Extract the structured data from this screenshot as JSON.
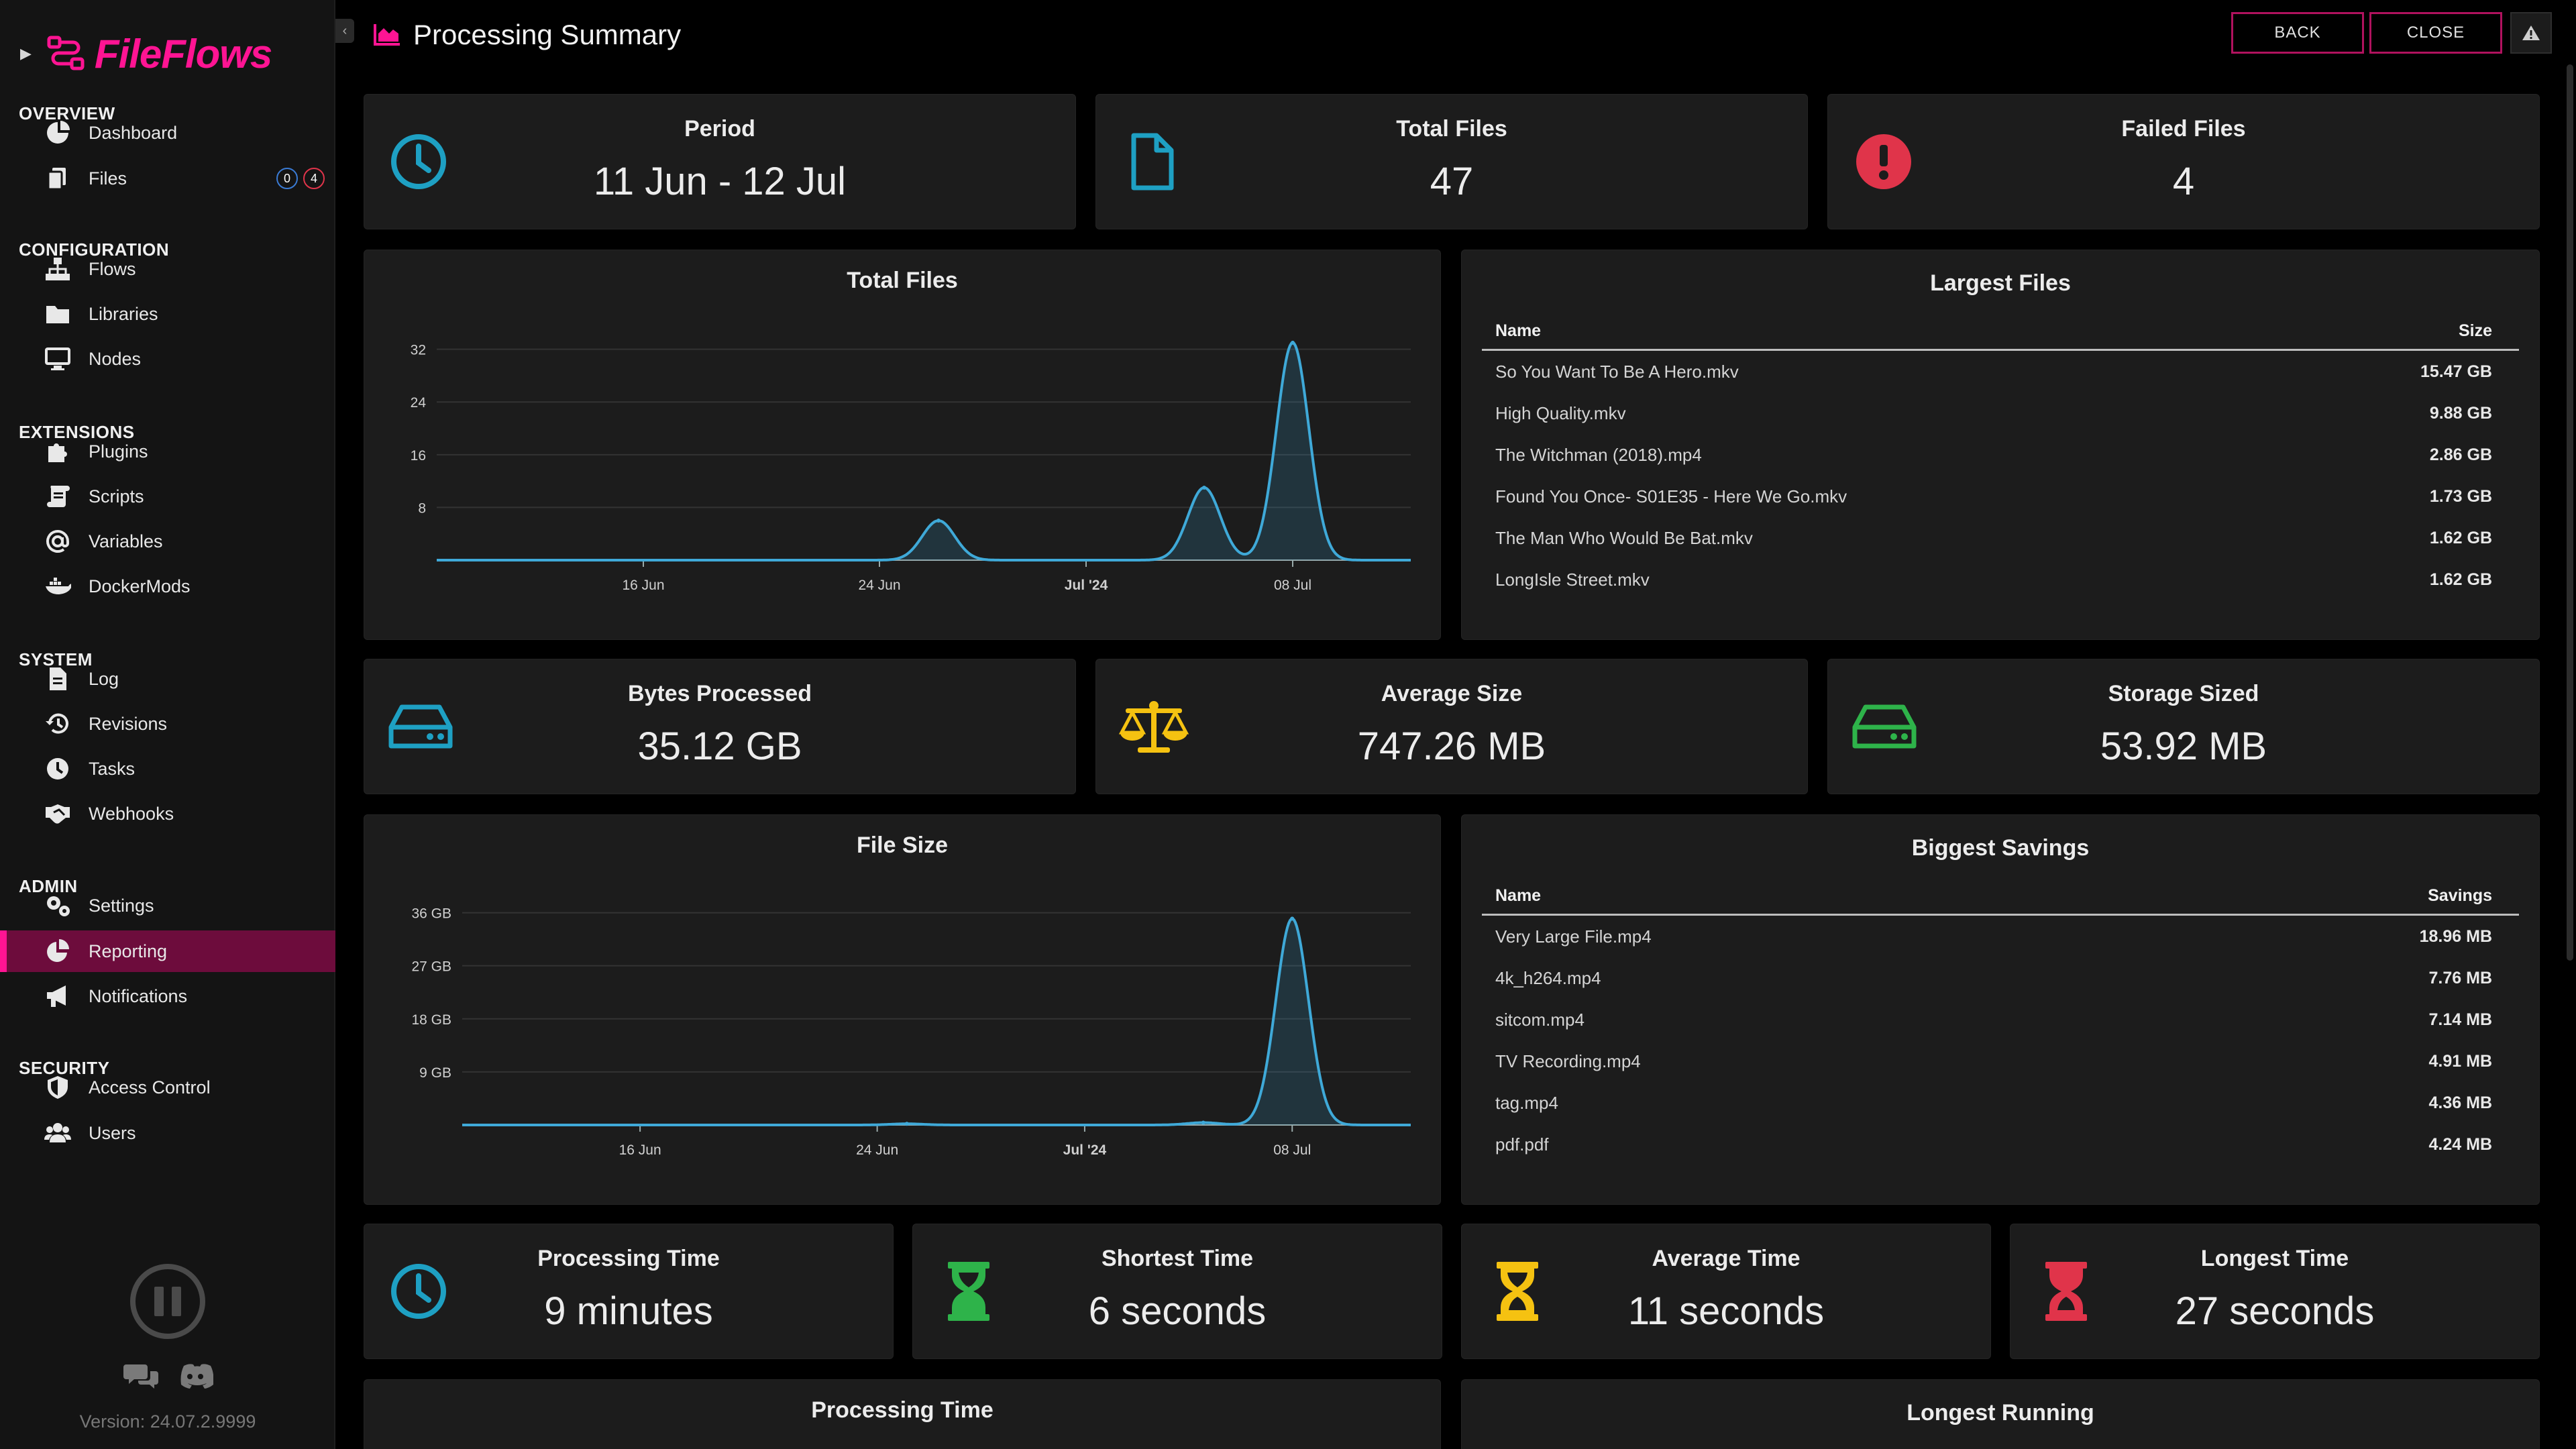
{
  "app": {
    "name": "FileFlows",
    "version": "Version: 24.07.2.9999"
  },
  "sidebar": {
    "sections": [
      {
        "title": "OVERVIEW",
        "items": [
          {
            "label": "Dashboard",
            "icon": "dashboard-icon"
          },
          {
            "label": "Files",
            "icon": "files-icon",
            "badges": [
              "0",
              "4"
            ]
          }
        ]
      },
      {
        "title": "CONFIGURATION",
        "items": [
          {
            "label": "Flows",
            "icon": "sitemap-icon"
          },
          {
            "label": "Libraries",
            "icon": "folder-icon"
          },
          {
            "label": "Nodes",
            "icon": "desktop-icon"
          }
        ]
      },
      {
        "title": "EXTENSIONS",
        "items": [
          {
            "label": "Plugins",
            "icon": "puzzle-icon"
          },
          {
            "label": "Scripts",
            "icon": "scroll-icon"
          },
          {
            "label": "Variables",
            "icon": "at-icon"
          },
          {
            "label": "DockerMods",
            "icon": "docker-icon"
          }
        ]
      },
      {
        "title": "SYSTEM",
        "items": [
          {
            "label": "Log",
            "icon": "file-lines-icon"
          },
          {
            "label": "Revisions",
            "icon": "history-icon"
          },
          {
            "label": "Tasks",
            "icon": "clock-icon"
          },
          {
            "label": "Webhooks",
            "icon": "handshake-icon"
          }
        ]
      },
      {
        "title": "ADMIN",
        "items": [
          {
            "label": "Settings",
            "icon": "gears-icon"
          },
          {
            "label": "Reporting",
            "icon": "chart-pie-icon",
            "active": true
          },
          {
            "label": "Notifications",
            "icon": "bullhorn-icon"
          }
        ]
      },
      {
        "title": "SECURITY",
        "items": [
          {
            "label": "Access Control",
            "icon": "shield-icon"
          },
          {
            "label": "Users",
            "icon": "users-icon"
          }
        ]
      }
    ]
  },
  "header": {
    "title": "Processing Summary",
    "back_label": "BACK",
    "close_label": "CLOSE"
  },
  "stats_row1": [
    {
      "label": "Period",
      "value": "11 Jun - 12 Jul",
      "icon": "clock-icon",
      "color": "#1ea0c3"
    },
    {
      "label": "Total Files",
      "value": "47",
      "icon": "file-icon",
      "color": "#1ea0c3"
    },
    {
      "label": "Failed Files",
      "value": "4",
      "icon": "exclamation-circle-icon",
      "color": "#e0344a"
    }
  ],
  "stats_row2": [
    {
      "label": "Bytes Processed",
      "value": "35.12 GB",
      "icon": "hard-drive-icon",
      "color": "#1ea0c3"
    },
    {
      "label": "Average Size",
      "value": "747.26 MB",
      "icon": "scale-balanced-icon",
      "color": "#f5c211"
    },
    {
      "label": "Storage Sized",
      "value": "53.92 MB",
      "icon": "hard-drive-icon",
      "color": "#2eb34a"
    }
  ],
  "stats_row3": [
    {
      "label": "Processing Time",
      "value": "9 minutes",
      "icon": "clock-icon",
      "color": "#1ea0c3"
    },
    {
      "label": "Shortest Time",
      "value": "6 seconds",
      "icon": "hourglass-icon",
      "color": "#2eb34a"
    },
    {
      "label": "Average Time",
      "value": "11 seconds",
      "icon": "hourglass-icon",
      "color": "#f5c211"
    },
    {
      "label": "Longest Time",
      "value": "27 seconds",
      "icon": "hourglass-icon",
      "color": "#e0344a"
    }
  ],
  "largest_files": {
    "title": "Largest Files",
    "col_name": "Name",
    "col_value": "Size",
    "rows": [
      {
        "name": "So You Want To Be A Hero.mkv",
        "value": "15.47 GB"
      },
      {
        "name": "High Quality.mkv",
        "value": "9.88 GB"
      },
      {
        "name": "The Witchman (2018).mp4",
        "value": "2.86 GB"
      },
      {
        "name": "Found You Once- S01E35 - Here We Go.mkv",
        "value": "1.73 GB"
      },
      {
        "name": "The Man Who Would Be Bat.mkv",
        "value": "1.62 GB"
      },
      {
        "name": "LongIsle Street.mkv",
        "value": "1.62 GB"
      }
    ]
  },
  "biggest_savings": {
    "title": "Biggest Savings",
    "col_name": "Name",
    "col_value": "Savings",
    "rows": [
      {
        "name": "Very Large File.mp4",
        "value": "18.96 MB"
      },
      {
        "name": "4k_h264.mp4",
        "value": "7.76 MB"
      },
      {
        "name": "sitcom.mp4",
        "value": "7.14 MB"
      },
      {
        "name": "TV Recording.mp4",
        "value": "4.91 MB"
      },
      {
        "name": "tag.mp4",
        "value": "4.36 MB"
      },
      {
        "name": "pdf.pdf",
        "value": "4.24 MB"
      }
    ]
  },
  "bottom_cards": {
    "processing_time_title": "Processing Time",
    "longest_running_title": "Longest Running"
  },
  "chart_data": [
    {
      "type": "area",
      "title": "Total Files",
      "ylim": [
        0,
        34
      ],
      "yticks": [
        "8",
        "16",
        "24",
        "32"
      ],
      "ytick_values": [
        8,
        16,
        24,
        32
      ],
      "xlim": [
        "2024-06-09",
        "2024-07-12"
      ],
      "xticks": [
        {
          "label": "16 Jun",
          "date": "2024-06-16",
          "bold": false
        },
        {
          "label": "24 Jun",
          "date": "2024-06-24",
          "bold": false
        },
        {
          "label": "Jul '24",
          "date": "2024-07-01",
          "bold": true
        },
        {
          "label": "08 Jul",
          "date": "2024-07-08",
          "bold": false
        }
      ],
      "series": [
        {
          "points": [
            {
              "date": "2024-06-26",
              "value": 6
            },
            {
              "date": "2024-07-05",
              "value": 11
            },
            {
              "date": "2024-07-08",
              "value": 33
            }
          ]
        }
      ],
      "color": "#3fa9d8"
    },
    {
      "type": "area",
      "title": "File Size",
      "ylim": [
        0,
        38
      ],
      "yticks": [
        "9 GB",
        "18 GB",
        "27 GB",
        "36 GB"
      ],
      "ytick_values": [
        9,
        18,
        27,
        36
      ],
      "xlim": [
        "2024-06-10",
        "2024-07-12"
      ],
      "xticks": [
        {
          "label": "16 Jun",
          "date": "2024-06-16",
          "bold": false
        },
        {
          "label": "24 Jun",
          "date": "2024-06-24",
          "bold": false
        },
        {
          "label": "Jul '24",
          "date": "2024-07-01",
          "bold": true
        },
        {
          "label": "08 Jul",
          "date": "2024-07-08",
          "bold": false
        }
      ],
      "series": [
        {
          "points": [
            {
              "date": "2024-06-25",
              "value": 0.2
            },
            {
              "date": "2024-07-05",
              "value": 0.4
            },
            {
              "date": "2024-07-08",
              "value": 35
            }
          ]
        }
      ],
      "color": "#3fa9d8"
    }
  ]
}
